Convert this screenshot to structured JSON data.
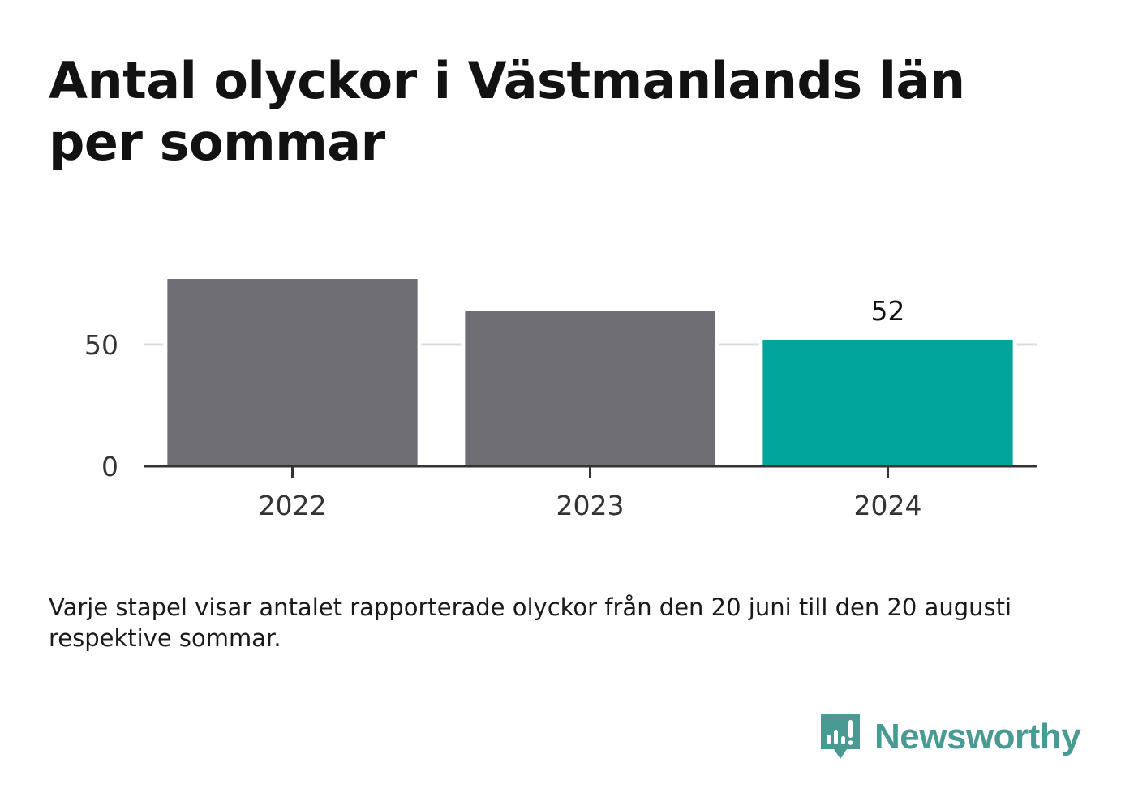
{
  "chart_data": {
    "type": "bar",
    "title": "Antal olyckor i Västmanlands län per sommar",
    "categories": [
      "2022",
      "2023",
      "2024"
    ],
    "values": [
      77,
      64,
      52
    ],
    "value_labels": [
      "",
      "",
      "52"
    ],
    "ylim": [
      0,
      80
    ],
    "yticks": [
      {
        "value": 0,
        "label": "0"
      },
      {
        "value": 50,
        "label": "50"
      }
    ],
    "grid": true,
    "colors": {
      "default": "#6f6e74",
      "highlight": "#00a49a",
      "grid": "#dcdcdc",
      "axis": "#333333"
    },
    "highlight_index": 2
  },
  "note": "Varje stapel visar antalet rapporterade olyckor från den 20 juni till den 20 augusti respektive sommar.",
  "logo": {
    "text": "Newsworthy",
    "icon": "newsworthy-bar-chart-bubble-icon",
    "color": "#4a9a94"
  }
}
